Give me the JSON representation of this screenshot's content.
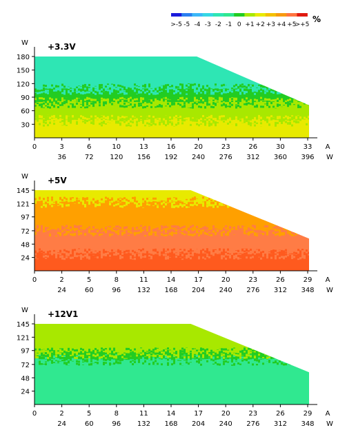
{
  "legend": {
    "unit": "%",
    "labels": [
      ">-5",
      "-5",
      "-4",
      "-3",
      "-2",
      "-1",
      "0",
      "+1",
      "+2",
      "+3",
      "+4",
      "+5",
      ">+5"
    ],
    "colors": [
      "#1a1adc",
      "#2a7ff0",
      "#3cb8f8",
      "#35d8e4",
      "#2ee6b4",
      "#30e890",
      "#22cc22",
      "#a8e800",
      "#e8ea00",
      "#f4c000",
      "#f79a10",
      "#ff7440",
      "#e01a10"
    ]
  },
  "chart_data": [
    {
      "type": "heatmap",
      "title": "+3.3V",
      "x_unit": "A",
      "x2_unit": "W",
      "y_unit": "W",
      "x_ticks": [
        0,
        3,
        6,
        10,
        13,
        16,
        20,
        23,
        26,
        30,
        33
      ],
      "x2_ticks": [
        36,
        72,
        120,
        156,
        192,
        240,
        276,
        312,
        360,
        396
      ],
      "y_ticks": [
        30,
        60,
        90,
        120,
        150,
        180
      ],
      "xlim": [
        0,
        33
      ],
      "ylim": [
        0,
        180
      ],
      "boundary": [
        [
          0,
          180
        ],
        [
          19.5,
          180
        ],
        [
          33,
          72
        ]
      ],
      "regions": [
        {
          "from": 0,
          "to": 40,
          "level": "+2",
          "color": "#e8ea00"
        },
        {
          "from": 40,
          "to": 80,
          "level": "+1",
          "color": "#a8e800"
        },
        {
          "from": 80,
          "to": 110,
          "level": "0",
          "color": "#22cc22"
        },
        {
          "from": 110,
          "to": 180,
          "level": "-2",
          "color": "#2ee6b4"
        }
      ]
    },
    {
      "type": "heatmap",
      "title": "+5V",
      "x_unit": "A",
      "x2_unit": "W",
      "y_unit": "W",
      "x_ticks": [
        0,
        2,
        5,
        8,
        11,
        14,
        17,
        20,
        23,
        26,
        29
      ],
      "x2_ticks": [
        24,
        60,
        96,
        132,
        168,
        204,
        240,
        276,
        312,
        348
      ],
      "y_ticks": [
        24,
        48,
        72,
        97,
        121,
        145
      ],
      "xlim": [
        0,
        29
      ],
      "ylim": [
        0,
        145
      ],
      "boundary": [
        [
          0,
          145
        ],
        [
          16.5,
          145
        ],
        [
          29,
          58
        ]
      ],
      "regions": [
        {
          "from": 0,
          "to": 32,
          "level": ">+5",
          "color": "#ff5a1e"
        },
        {
          "from": 32,
          "to": 74,
          "level": "+5",
          "color": "#ff7c45"
        },
        {
          "from": 74,
          "to": 125,
          "level": "+4",
          "color": "#ffa000"
        },
        {
          "from": 125,
          "to": 145,
          "level": "+2",
          "color": "#e8ea00"
        }
      ]
    },
    {
      "type": "heatmap",
      "title": "+12V1",
      "x_unit": "A",
      "x2_unit": "W",
      "y_unit": "W",
      "x_ticks": [
        0,
        2,
        5,
        8,
        11,
        14,
        17,
        20,
        23,
        26,
        29
      ],
      "x2_ticks": [
        24,
        60,
        96,
        132,
        168,
        204,
        240,
        276,
        312,
        348
      ],
      "y_ticks": [
        24,
        48,
        72,
        97,
        121,
        145
      ],
      "xlim": [
        0,
        29
      ],
      "ylim": [
        0,
        145
      ],
      "boundary": [
        [
          0,
          145
        ],
        [
          16.5,
          145
        ],
        [
          29,
          58
        ]
      ],
      "regions": [
        {
          "from": 0,
          "to": 82,
          "level": "-1",
          "color": "#30e890"
        },
        {
          "from": 82,
          "to": 94,
          "level": "0",
          "color": "#22cc22"
        },
        {
          "from": 94,
          "to": 145,
          "level": "+1",
          "color": "#a8e800"
        }
      ]
    }
  ]
}
